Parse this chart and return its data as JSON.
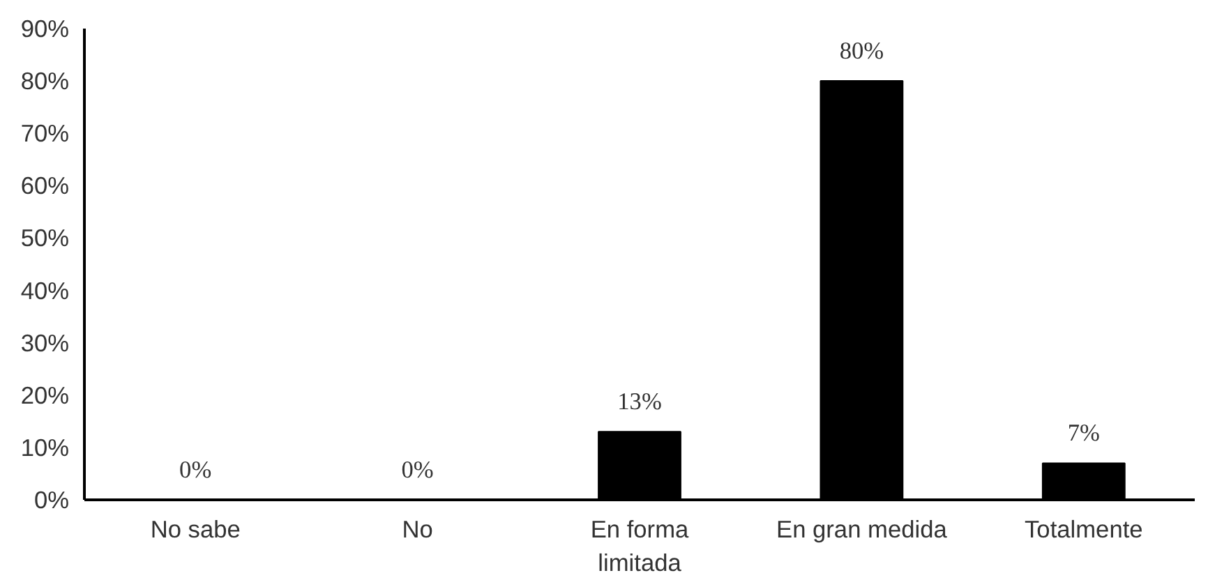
{
  "chart_data": {
    "type": "bar",
    "categories": [
      "No sabe",
      "No",
      "En forma limitada",
      "En gran medida",
      "Totalmente"
    ],
    "values": [
      0,
      0,
      13,
      80,
      7
    ],
    "value_labels": [
      "0%",
      "0%",
      "13%",
      "80%",
      "7%"
    ],
    "color": "#000000",
    "ylim": [
      0,
      90
    ],
    "yticks": [
      {
        "value": 0,
        "label": "0%"
      },
      {
        "value": 10,
        "label": "10%"
      },
      {
        "value": 20,
        "label": "20%"
      },
      {
        "value": 30,
        "label": "30%"
      },
      {
        "value": 40,
        "label": "40%"
      },
      {
        "value": 50,
        "label": "50%"
      },
      {
        "value": 60,
        "label": "60%"
      },
      {
        "value": 70,
        "label": "70%"
      },
      {
        "value": 80,
        "label": "80%"
      },
      {
        "value": 90,
        "label": "90%"
      }
    ],
    "grid": false
  }
}
